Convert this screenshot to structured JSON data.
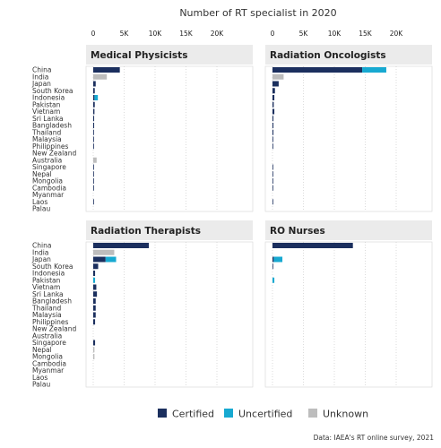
{
  "title": "Number of RT specialist in 2020",
  "source": "Data: IAEA's RT online survey, 2021",
  "colors": {
    "Certified": "#1b2f5e",
    "Uncertified": "#17a9d1",
    "Unknown": "#bdbdbd",
    "panel_header": "#ebebeb",
    "grid": "#cccccc"
  },
  "chart_data": {
    "type": "bar",
    "orientation": "horizontal",
    "stacked": true,
    "title": "Number of RT specialist in 2020",
    "xlim": [
      0,
      25000
    ],
    "x_ticks": [
      0,
      5000,
      10000,
      15000,
      20000
    ],
    "x_tick_labels": [
      "0",
      "5K",
      "10K",
      "15K",
      "20K"
    ],
    "grid": true,
    "legend": {
      "position": "bottom",
      "entries": [
        "Certified",
        "Uncertified",
        "Unknown"
      ]
    },
    "categories": [
      "China",
      "India",
      "Japan",
      "South Korea",
      "Indonesia",
      "Pakistan",
      "Vietnam",
      "Sri Lanka",
      "Bangladesh",
      "Thailand",
      "Malaysia",
      "Philippines",
      "New Zealand",
      "Australia",
      "Singapore",
      "Nepal",
      "Mongolia",
      "Cambodia",
      "Myanmar",
      "Laos",
      "Palau"
    ],
    "panels": [
      {
        "title": "Medical Physicists",
        "series": [
          {
            "name": "Certified",
            "values": [
              4300,
              0,
              400,
              250,
              200,
              250,
              200,
              150,
              150,
              120,
              120,
              120,
              0,
              0,
              100,
              50,
              30,
              20,
              0,
              10,
              0
            ]
          },
          {
            "name": "Uncertified",
            "values": [
              0,
              0,
              0,
              0,
              550,
              0,
              0,
              0,
              0,
              0,
              0,
              0,
              0,
              0,
              0,
              0,
              0,
              0,
              0,
              0,
              0
            ]
          },
          {
            "name": "Unknown",
            "values": [
              0,
              2200,
              0,
              0,
              0,
              0,
              0,
              0,
              0,
              0,
              0,
              0,
              0,
              550,
              0,
              0,
              0,
              0,
              0,
              0,
              0
            ]
          }
        ]
      },
      {
        "title": "Radiation Oncologists",
        "series": [
          {
            "name": "Certified",
            "values": [
              14500,
              0,
              1000,
              400,
              300,
              200,
              300,
              150,
              150,
              150,
              120,
              120,
              0,
              0,
              100,
              50,
              20,
              20,
              0,
              10,
              0
            ]
          },
          {
            "name": "Uncertified",
            "values": [
              3900,
              0,
              0,
              0,
              0,
              0,
              0,
              0,
              0,
              0,
              0,
              0,
              0,
              0,
              0,
              0,
              0,
              0,
              0,
              0,
              0
            ]
          },
          {
            "name": "Unknown",
            "values": [
              0,
              1800,
              0,
              0,
              0,
              0,
              0,
              0,
              0,
              0,
              0,
              0,
              0,
              0,
              0,
              0,
              0,
              0,
              0,
              0,
              0
            ]
          }
        ]
      },
      {
        "title": "Radiation Therapists",
        "series": [
          {
            "name": "Certified",
            "values": [
              9000,
              0,
              2000,
              800,
              300,
              0,
              500,
              600,
              400,
              400,
              400,
              300,
              0,
              0,
              300,
              0,
              0,
              0,
              0,
              0,
              0
            ]
          },
          {
            "name": "Uncertified",
            "values": [
              0,
              0,
              1700,
              0,
              0,
              300,
              0,
              0,
              0,
              0,
              0,
              0,
              0,
              0,
              0,
              0,
              0,
              0,
              0,
              0,
              0
            ]
          },
          {
            "name": "Unknown",
            "values": [
              0,
              3400,
              0,
              0,
              0,
              0,
              0,
              0,
              0,
              0,
              0,
              0,
              0,
              0,
              0,
              200,
              200,
              0,
              0,
              0,
              0
            ]
          }
        ]
      },
      {
        "title": "RO Nurses",
        "series": [
          {
            "name": "Certified",
            "values": [
              13000,
              0,
              200,
              100,
              0,
              0,
              0,
              0,
              0,
              0,
              0,
              0,
              0,
              0,
              0,
              0,
              0,
              0,
              0,
              0,
              0
            ]
          },
          {
            "name": "Uncertified",
            "values": [
              0,
              0,
              1400,
              0,
              0,
              300,
              0,
              0,
              0,
              0,
              0,
              0,
              0,
              0,
              0,
              0,
              0,
              0,
              0,
              0,
              0
            ]
          },
          {
            "name": "Unknown",
            "values": [
              0,
              0,
              0,
              0,
              0,
              0,
              0,
              0,
              0,
              0,
              0,
              0,
              0,
              0,
              0,
              0,
              0,
              0,
              0,
              0,
              0
            ]
          }
        ]
      }
    ]
  }
}
